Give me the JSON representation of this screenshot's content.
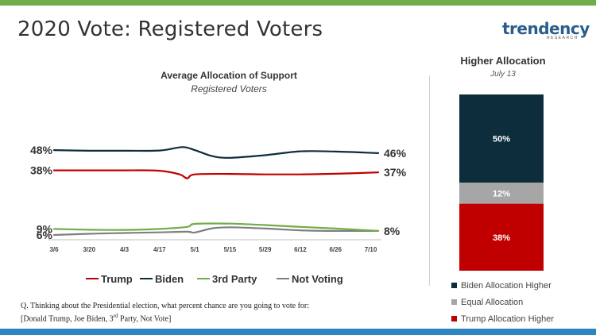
{
  "slide": {
    "title": "2020 Vote: Registered Voters",
    "logo_text": "trendency",
    "logo_subtext": "RESEARCH",
    "top_bar_color": "#70ad47",
    "bottom_bar_color": "#2e86c1"
  },
  "footnote": {
    "line1": "Q. Thinking about the Presidential election, what percent chance are you going to vote for:",
    "line2_pre": "[Donald Trump, Joe Biden, 3",
    "line2_sup": "rd",
    "line2_post": " Party, Not Vote]"
  },
  "chart_data": [
    {
      "type": "line",
      "title": "Average Allocation of Support",
      "subtitle": "Registered Voters",
      "x_tick_labels": [
        "3/6",
        "3/20",
        "4/3",
        "4/17",
        "5/1",
        "5/15",
        "5/29",
        "6/12",
        "6/26",
        "7/10"
      ],
      "x_range": [
        "3/6",
        "7/13"
      ],
      "series": [
        {
          "name": "Trump",
          "color": "#c00000",
          "start_label": "38%",
          "end_label": "37%",
          "points": [
            [
              "3/6",
              38
            ],
            [
              "3/20",
              38
            ],
            [
              "4/3",
              38
            ],
            [
              "4/17",
              37.8
            ],
            [
              "4/25",
              36
            ],
            [
              "4/28",
              34
            ],
            [
              "5/1",
              36
            ],
            [
              "5/15",
              36.2
            ],
            [
              "5/29",
              36
            ],
            [
              "6/12",
              36
            ],
            [
              "6/26",
              36.3
            ],
            [
              "7/13",
              37
            ]
          ]
        },
        {
          "name": "Biden",
          "color": "#0d2c3c",
          "start_label": "48%",
          "end_label": "46%",
          "points": [
            [
              "3/6",
              48
            ],
            [
              "3/20",
              47.7
            ],
            [
              "4/3",
              47.7
            ],
            [
              "4/17",
              47.8
            ],
            [
              "4/26",
              49.5
            ],
            [
              "5/1",
              48
            ],
            [
              "5/8",
              45
            ],
            [
              "5/15",
              44.2
            ],
            [
              "5/29",
              45.5
            ],
            [
              "6/12",
              47.4
            ],
            [
              "6/26",
              47.3
            ],
            [
              "7/13",
              46.5
            ]
          ]
        },
        {
          "name": "3rd Party",
          "color": "#70ad47",
          "start_label": "9%",
          "end_label": "",
          "points": [
            [
              "3/6",
              9
            ],
            [
              "3/20",
              8.6
            ],
            [
              "4/3",
              8.5
            ],
            [
              "4/17",
              9
            ],
            [
              "4/28",
              10
            ],
            [
              "5/1",
              11.5
            ],
            [
              "5/15",
              11.6
            ],
            [
              "5/29",
              10.9
            ],
            [
              "6/12",
              10
            ],
            [
              "6/26",
              9.2
            ],
            [
              "7/13",
              8
            ]
          ]
        },
        {
          "name": "Not Voting",
          "color": "#7f7f7f",
          "start_label": "6%",
          "end_label": "8%",
          "points": [
            [
              "3/6",
              6
            ],
            [
              "3/20",
              6.6
            ],
            [
              "4/3",
              7
            ],
            [
              "4/17",
              7.3
            ],
            [
              "4/28",
              7.6
            ],
            [
              "5/1",
              7.2
            ],
            [
              "5/8",
              9.3
            ],
            [
              "5/15",
              9.8
            ],
            [
              "5/29",
              9.2
            ],
            [
              "6/12",
              8.3
            ],
            [
              "6/26",
              8
            ],
            [
              "7/13",
              8
            ]
          ]
        }
      ]
    },
    {
      "type": "bar",
      "stacked": true,
      "title": "Higher Allocation",
      "subtitle": "July 13",
      "series": [
        {
          "name": "Biden Allocation Higher",
          "value": 50,
          "label": "50%",
          "color": "#0d2c3c"
        },
        {
          "name": "Equal Allocation",
          "value": 12,
          "label": "12%",
          "color": "#a6a6a6"
        },
        {
          "name": "Trump Allocation Higher",
          "value": 38,
          "label": "38%",
          "color": "#c00000"
        }
      ]
    }
  ]
}
